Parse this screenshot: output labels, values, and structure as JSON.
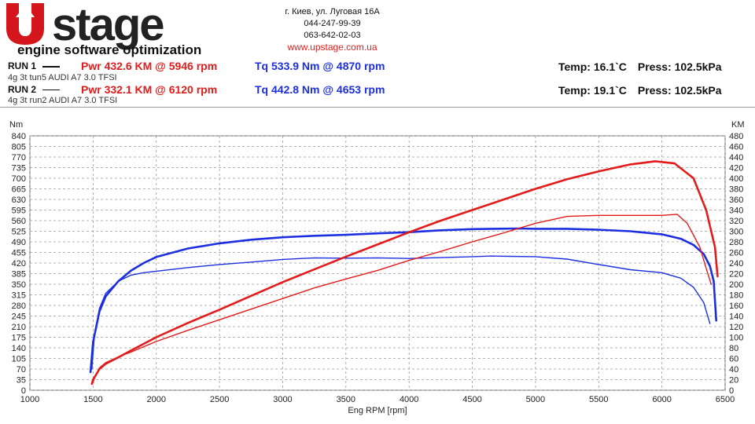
{
  "header": {
    "logo_text": "stage",
    "logo_tagline": "engine software optimization",
    "address": "г. Киев, ул. Луговая 16А",
    "phone1": "044-247-99-39",
    "phone2": "063-642-02-03",
    "website": "www.upstage.com.ua"
  },
  "runs": [
    {
      "label": "RUN 1",
      "car": "4g 3t tun5 AUDI A7 3.0 TFSI",
      "pwr": "Pwr  432.6 KM @ 5946 rpm",
      "tq": "Tq 533.9 Nm @ 4870 rpm",
      "temp": "Temp: 16.1`C",
      "press": "Press: 102.5kPa"
    },
    {
      "label": "RUN 2",
      "car": "4g 3t run2 AUDI A7 3.0 TFSI",
      "pwr": "Pwr  332.1 KM @ 6120 rpm",
      "tq": "Tq 442.8 Nm @ 4653 rpm",
      "temp": "Temp: 19.1`C",
      "press": "Press: 102.5kPa"
    }
  ],
  "colors": {
    "power": "#e41b1b",
    "torque": "#1c2fe0",
    "grid": "#9a9a9a"
  },
  "chart_data": {
    "type": "line",
    "title": "",
    "xlabel": "Eng RPM [rpm]",
    "ylabel_left": "Nm",
    "ylabel_right": "KM",
    "xlim": [
      1000,
      6500
    ],
    "ylim_left": [
      0,
      840
    ],
    "ylim_right": [
      0,
      480
    ],
    "x_ticks": [
      1000,
      1500,
      2000,
      2500,
      3000,
      3500,
      4000,
      4500,
      5000,
      5500,
      6000,
      6500
    ],
    "y_left_ticks": [
      0,
      35,
      70,
      105,
      140,
      175,
      210,
      245,
      280,
      315,
      350,
      385,
      420,
      455,
      490,
      525,
      560,
      595,
      630,
      665,
      700,
      735,
      770,
      805,
      840
    ],
    "y_right_ticks": [
      0,
      20,
      40,
      60,
      80,
      100,
      120,
      140,
      160,
      180,
      200,
      220,
      240,
      260,
      280,
      300,
      320,
      340,
      360,
      380,
      400,
      420,
      440,
      460,
      480
    ],
    "grid": true,
    "series": [
      {
        "name": "RUN 1",
        "quantity": "torque",
        "axis": "left",
        "width": 2.6,
        "x": [
          1480,
          1500,
          1550,
          1600,
          1700,
          1800,
          1900,
          2000,
          2250,
          2500,
          2750,
          3000,
          3250,
          3500,
          3750,
          4000,
          4250,
          4500,
          4870,
          5000,
          5250,
          5500,
          5750,
          6000,
          6150,
          6250,
          6330,
          6380,
          6410,
          6430
        ],
        "y": [
          60,
          160,
          260,
          310,
          360,
          395,
          420,
          440,
          468,
          485,
          497,
          505,
          510,
          513,
          518,
          522,
          528,
          532,
          534,
          533,
          533,
          530,
          525,
          515,
          500,
          480,
          450,
          410,
          360,
          230
        ]
      },
      {
        "name": "RUN 2",
        "quantity": "torque",
        "axis": "left",
        "width": 1.4,
        "x": [
          1490,
          1510,
          1550,
          1600,
          1700,
          1800,
          1900,
          2000,
          2250,
          2500,
          2750,
          3000,
          3250,
          3500,
          3750,
          4000,
          4250,
          4500,
          4653,
          4800,
          5000,
          5250,
          5500,
          5750,
          6000,
          6150,
          6250,
          6330,
          6380
        ],
        "y": [
          70,
          180,
          270,
          320,
          360,
          380,
          388,
          393,
          405,
          415,
          423,
          432,
          437,
          436,
          437,
          435,
          438,
          441,
          443,
          442,
          441,
          433,
          415,
          398,
          388,
          370,
          340,
          290,
          220
        ]
      },
      {
        "name": "RUN 1",
        "quantity": "power",
        "axis": "right",
        "width": 2.6,
        "x": [
          1490,
          1500,
          1550,
          1600,
          1700,
          1800,
          2000,
          2250,
          2500,
          2750,
          3000,
          3250,
          3500,
          3750,
          4000,
          4250,
          4500,
          4750,
          5000,
          5250,
          5500,
          5750,
          5946,
          6100,
          6250,
          6350,
          6420,
          6440
        ],
        "y": [
          12,
          20,
          40,
          50,
          62,
          75,
          100,
          127,
          152,
          178,
          204,
          228,
          252,
          275,
          298,
          320,
          340,
          360,
          380,
          398,
          413,
          426,
          432,
          428,
          400,
          340,
          270,
          215
        ]
      },
      {
        "name": "RUN 2",
        "quantity": "power",
        "axis": "right",
        "width": 1.4,
        "x": [
          1495,
          1510,
          1550,
          1600,
          1700,
          1800,
          2000,
          2250,
          2500,
          2750,
          3000,
          3250,
          3500,
          3750,
          4000,
          4250,
          4500,
          4750,
          5000,
          5250,
          5500,
          5750,
          6000,
          6120,
          6200,
          6300,
          6350,
          6390
        ],
        "y": [
          12,
          22,
          42,
          52,
          63,
          72,
          92,
          113,
          133,
          153,
          173,
          193,
          210,
          226,
          245,
          262,
          280,
          297,
          315,
          328,
          330,
          330,
          330,
          332,
          315,
          270,
          230,
          200
        ]
      }
    ]
  }
}
